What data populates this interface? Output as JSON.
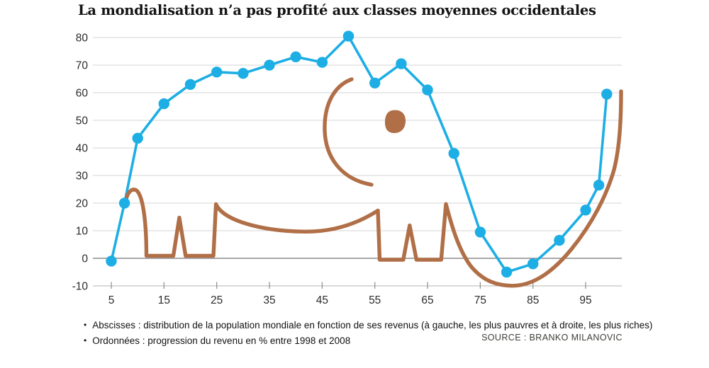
{
  "title": "La mondialisation n’a pas profité aux classes moyennes occidentales",
  "source": "SOURCE : BRANKO MILANOVIC",
  "notes": [
    {
      "bullet": "•",
      "text": "Abscisses : distribution de la population mondiale en fonction de ses revenus (à gauche, les plus pauvres et à droite, les plus riches)"
    },
    {
      "bullet": "•",
      "text": "Ordonnées : progression du revenu en % entre 1998 et 2008"
    }
  ],
  "colors": {
    "line": "#1caee4",
    "elephant": "#b06f47",
    "grid": "#d4d4d4",
    "zero_line": "#8c8c8c",
    "axis_line": "#b5b5b5",
    "tick_text": "#2b2b2b"
  },
  "chart_data": {
    "type": "line",
    "title": "La mondialisation n’a pas profité aux classes moyennes occidentales",
    "xlabel": "distribution de la population mondiale en fonction de ses revenus (percentiles, pauvres à gauche, riches à droite)",
    "ylabel": "progression du revenu en % entre 1998 et 2008",
    "xlim": [
      5,
      102.5
    ],
    "ylim": [
      -10,
      80
    ],
    "x_ticks": [
      5,
      15,
      25,
      35,
      45,
      55,
      65,
      75,
      85,
      95
    ],
    "y_ticks": [
      80,
      70,
      60,
      50,
      40,
      30,
      20,
      10,
      0,
      -10
    ],
    "grid": "horizontal",
    "legend": "none",
    "decoration": "brown elephant line-drawing overlaid on the curve",
    "series": [
      {
        "name": "progression du revenu (%)",
        "x": [
          5,
          7.5,
          10,
          15,
          20,
          25,
          30,
          35,
          40,
          45,
          50,
          55,
          60,
          65,
          70,
          75,
          80,
          85,
          90,
          95,
          97.5,
          99
        ],
        "y": [
          -1,
          20,
          43.5,
          56,
          63,
          67.5,
          67,
          70,
          73,
          71,
          80.5,
          63.5,
          70.5,
          61,
          38,
          9.5,
          -5,
          -2,
          6.5,
          17.5,
          26.5,
          59.5
        ]
      }
    ]
  }
}
